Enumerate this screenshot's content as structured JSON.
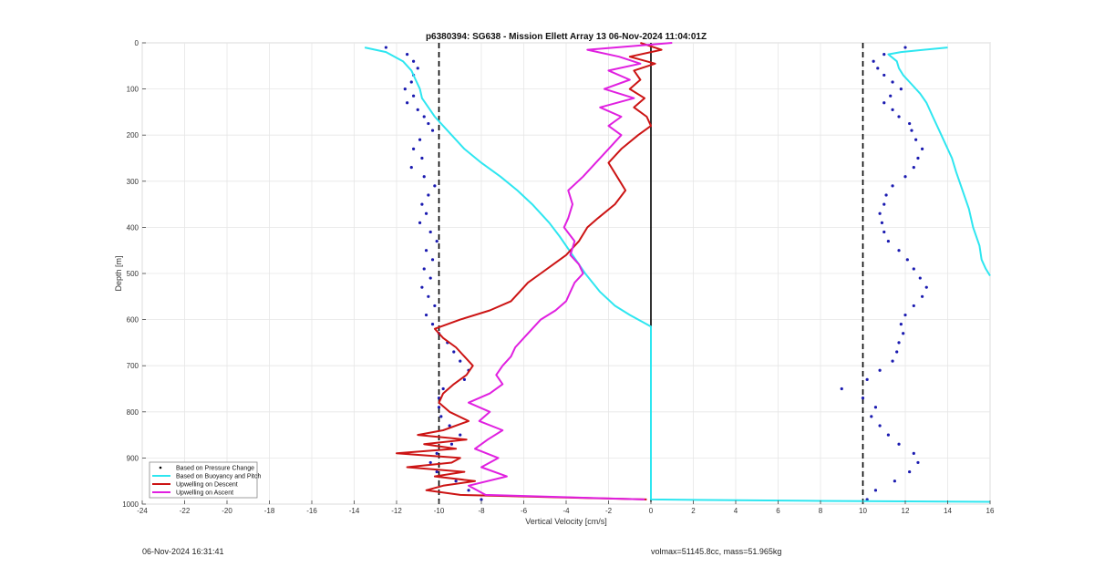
{
  "chart_data": {
    "type": "line",
    "title": "p6380394: SG638 - Mission Ellett Array 13 06-Nov-2024 11:04:01Z",
    "xlabel": "Vertical Velocity [cm/s]",
    "ylabel": "Depth [m]",
    "xlim": [
      -24,
      16
    ],
    "ylim": [
      0,
      1000
    ],
    "y_reversed": true,
    "grid": true,
    "x_ticks": [
      -24,
      -22,
      -20,
      -18,
      -16,
      -14,
      -12,
      -10,
      -8,
      -6,
      -4,
      -2,
      0,
      2,
      4,
      6,
      8,
      10,
      12,
      14,
      16
    ],
    "y_ticks": [
      0,
      100,
      200,
      300,
      400,
      500,
      600,
      700,
      800,
      900,
      1000
    ],
    "reference_lines": [
      {
        "x": -10,
        "style": "dashed",
        "color": "#000000"
      },
      {
        "x": 10,
        "style": "dashed",
        "color": "#000000"
      },
      {
        "x": 0,
        "style": "solid",
        "color": "#000000",
        "y_range": [
          0,
          995
        ]
      }
    ],
    "legend_position": "bottom-left",
    "series": [
      {
        "name": "Based on Pressure Change",
        "style": "dots",
        "color": "#1a1ab0",
        "segments": [
          {
            "depth": [
              10,
              25,
              40,
              55,
              70,
              85,
              100,
              115,
              130,
              145,
              160,
              175,
              190,
              210,
              230,
              250,
              270,
              290,
              310,
              330,
              350,
              370,
              390,
              410,
              430,
              450,
              470,
              490,
              510,
              530,
              550,
              570,
              590,
              610,
              630,
              650,
              670,
              690,
              710,
              730,
              750,
              770,
              790,
              810,
              830,
              850,
              870,
              890,
              910,
              930,
              950,
              970,
              990
            ],
            "velocity": [
              -12.5,
              -11.5,
              -11.2,
              -11.0,
              -11.2,
              -11.3,
              -11.6,
              -11.2,
              -11.5,
              -11.0,
              -10.7,
              -10.5,
              -10.3,
              -10.9,
              -11.2,
              -10.8,
              -11.3,
              -10.7,
              -10.2,
              -10.5,
              -10.8,
              -10.6,
              -10.9,
              -10.4,
              -10.1,
              -10.6,
              -10.3,
              -10.7,
              -10.4,
              -10.8,
              -10.5,
              -10.2,
              -10.6,
              -10.3,
              -10.0,
              -9.6,
              -9.3,
              -9.0,
              -8.6,
              -8.8,
              -9.8,
              -10.0,
              -10.0,
              -9.9,
              -9.5,
              -9.0,
              -9.4,
              -10.1,
              -10.4,
              -10.1,
              -9.2,
              -8.6,
              -8.0
            ]
          },
          {
            "depth": [
              10,
              25,
              40,
              55,
              70,
              85,
              100,
              115,
              130,
              145,
              160,
              175,
              190,
              210,
              230,
              250,
              270,
              290,
              310,
              330,
              350,
              370,
              390,
              410,
              430,
              450,
              470,
              490,
              510,
              530,
              550,
              570,
              590,
              610,
              630,
              650,
              670,
              690,
              710,
              730,
              750,
              770,
              790,
              810,
              830,
              850,
              870,
              890,
              910,
              930,
              950,
              970,
              990
            ],
            "velocity": [
              12.0,
              11.0,
              10.5,
              10.7,
              11.0,
              11.4,
              11.8,
              11.3,
              11.0,
              11.4,
              11.7,
              12.2,
              12.3,
              12.5,
              12.8,
              12.6,
              12.4,
              12.0,
              11.4,
              11.1,
              11.0,
              10.8,
              10.9,
              11.0,
              11.2,
              11.7,
              12.1,
              12.4,
              12.7,
              13.0,
              12.8,
              12.4,
              12.0,
              11.8,
              11.9,
              11.7,
              11.6,
              11.4,
              10.8,
              10.2,
              9.0,
              10.0,
              10.6,
              10.4,
              10.8,
              11.2,
              11.7,
              12.4,
              12.6,
              12.2,
              11.5,
              10.6,
              10.2
            ]
          }
        ]
      },
      {
        "name": "Based on Buoyancy and Pitch",
        "style": "line",
        "color": "#2ee6f0",
        "segments": [
          {
            "depth": [
              10,
              20,
              40,
              60,
              80,
              100,
              120,
              140,
              160,
              180,
              200,
              230,
              260,
              290,
              320,
              350,
              380,
              390,
              420,
              460,
              500,
              540,
              570,
              590,
              605,
              615,
              620,
              990,
              993,
              995
            ],
            "velocity": [
              -13.5,
              -12.5,
              -11.7,
              -11.3,
              -11.1,
              -10.9,
              -10.8,
              -10.5,
              -10.2,
              -9.8,
              -9.4,
              -8.8,
              -8.0,
              -7.1,
              -6.3,
              -5.6,
              -5.0,
              -4.8,
              -4.3,
              -3.7,
              -3.1,
              -2.4,
              -1.7,
              -1.0,
              -0.4,
              0.0,
              0.0,
              0.0,
              8.0,
              16.0
            ]
          },
          {
            "depth": [
              10,
              20,
              25,
              40,
              55,
              70,
              90,
              110,
              130,
              160,
              190,
              220,
              250,
              280,
              320,
              360,
              400,
              440,
              470,
              490,
              505
            ],
            "velocity": [
              14.0,
              11.8,
              11.2,
              11.6,
              11.7,
              11.9,
              12.3,
              12.7,
              13.0,
              13.3,
              13.6,
              13.9,
              14.2,
              14.4,
              14.7,
              15.0,
              15.2,
              15.5,
              15.6,
              15.8,
              16.0
            ]
          }
        ]
      },
      {
        "name": "Upwelling on Descent",
        "style": "line",
        "color": "#cc1414",
        "depth": [
          0,
          15,
          30,
          45,
          60,
          80,
          100,
          120,
          140,
          160,
          180,
          200,
          230,
          260,
          290,
          320,
          350,
          380,
          400,
          430,
          460,
          480,
          500,
          520,
          540,
          560,
          580,
          600,
          620,
          640,
          660,
          680,
          700,
          720,
          740,
          760,
          780,
          800,
          820,
          840,
          850,
          860,
          870,
          880,
          890,
          900,
          910,
          920,
          930,
          940,
          950,
          960,
          970,
          980,
          990
        ],
        "velocity": [
          -0.5,
          0.5,
          -1.0,
          0.2,
          -0.8,
          -0.5,
          -1.0,
          -0.3,
          -0.8,
          -0.2,
          0.0,
          -0.6,
          -1.4,
          -2.0,
          -1.6,
          -1.2,
          -1.7,
          -2.5,
          -3.0,
          -3.4,
          -4.0,
          -4.6,
          -5.2,
          -5.8,
          -6.2,
          -6.6,
          -7.6,
          -9.0,
          -10.2,
          -9.8,
          -9.2,
          -8.8,
          -8.4,
          -8.7,
          -9.3,
          -9.8,
          -10.0,
          -9.5,
          -8.6,
          -9.8,
          -11.0,
          -8.7,
          -10.7,
          -9.2,
          -12.0,
          -9.0,
          -9.4,
          -11.5,
          -8.8,
          -10.2,
          -8.3,
          -9.8,
          -10.6,
          -9.0,
          -0.2
        ]
      },
      {
        "name": "Upwelling on Ascent",
        "style": "line",
        "color": "#e020e0",
        "depth": [
          0,
          15,
          30,
          45,
          60,
          80,
          100,
          120,
          140,
          160,
          180,
          200,
          230,
          260,
          290,
          320,
          350,
          380,
          400,
          430,
          460,
          480,
          500,
          520,
          540,
          560,
          580,
          600,
          620,
          640,
          660,
          680,
          700,
          720,
          740,
          760,
          780,
          800,
          820,
          840,
          860,
          880,
          900,
          920,
          940,
          960,
          980,
          990
        ],
        "velocity": [
          1.0,
          -3.0,
          -1.5,
          -0.5,
          -2.0,
          -1.0,
          -2.2,
          -0.8,
          -2.4,
          -1.4,
          -2.0,
          -1.4,
          -2.0,
          -2.6,
          -3.2,
          -3.9,
          -3.7,
          -3.9,
          -4.1,
          -3.6,
          -3.8,
          -3.4,
          -3.2,
          -3.6,
          -3.8,
          -4.0,
          -4.5,
          -5.2,
          -5.6,
          -6.0,
          -6.4,
          -6.6,
          -7.0,
          -7.3,
          -7.0,
          -7.6,
          -8.6,
          -7.6,
          -8.1,
          -7.0,
          -7.7,
          -8.3,
          -7.2,
          -8.0,
          -6.8,
          -8.6,
          -7.8,
          -0.3
        ]
      }
    ],
    "legend": [
      "Based on Pressure Change",
      "Based on Buoyancy and Pitch",
      "Upwelling on Descent",
      "Upwelling on Ascent"
    ]
  },
  "footer": {
    "timestamp": "06-Nov-2024 16:31:41",
    "stats": "volmax=51145.8cc, mass=51.965kg"
  }
}
